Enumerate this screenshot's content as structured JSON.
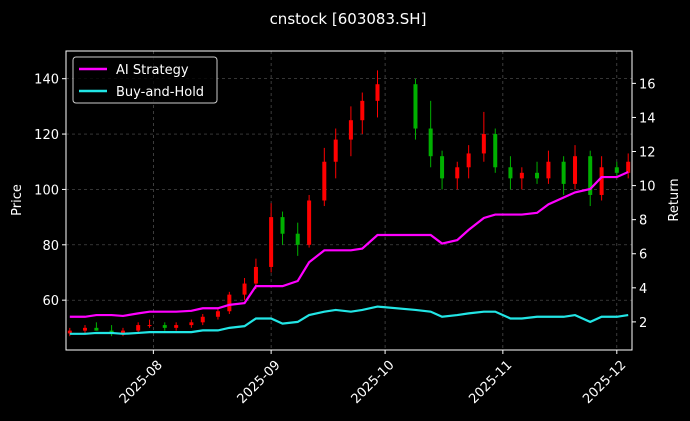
{
  "chart_data": {
    "type": "candlestick",
    "title": "cnstock [603083.SH]",
    "ylabel": "Price",
    "y2label": "Return",
    "x": [
      "2025-07-10",
      "2025-07-14",
      "2025-07-17",
      "2025-07-21",
      "2025-07-24",
      "2025-07-28",
      "2025-07-31",
      "2025-08-04",
      "2025-08-07",
      "2025-08-11",
      "2025-08-14",
      "2025-08-18",
      "2025-08-21",
      "2025-08-25",
      "2025-08-28",
      "2025-09-01",
      "2025-09-04",
      "2025-09-08",
      "2025-09-11",
      "2025-09-15",
      "2025-09-18",
      "2025-09-22",
      "2025-09-25",
      "2025-09-29",
      "2025-10-09",
      "2025-10-13",
      "2025-10-16",
      "2025-10-20",
      "2025-10-23",
      "2025-10-27",
      "2025-10-30",
      "2025-11-03",
      "2025-11-06",
      "2025-11-10",
      "2025-11-13",
      "2025-11-17",
      "2025-11-20",
      "2025-11-24",
      "2025-11-27",
      "2025-12-01",
      "2025-12-04"
    ],
    "candles": {
      "open": [
        48,
        49,
        50,
        49,
        48,
        49,
        51,
        51,
        50,
        51,
        52,
        54,
        56,
        62,
        66,
        72,
        90,
        84,
        80,
        96,
        110,
        118,
        125,
        132,
        138,
        122,
        112,
        104,
        108,
        113,
        120,
        108,
        104,
        106,
        104,
        110,
        102,
        112,
        98,
        108,
        106
      ],
      "high": [
        50,
        51,
        52,
        51,
        50,
        52,
        53,
        52,
        52,
        53,
        55,
        57,
        63,
        68,
        75,
        95,
        92,
        88,
        98,
        115,
        122,
        130,
        135,
        143,
        140,
        132,
        114,
        110,
        116,
        128,
        122,
        112,
        108,
        110,
        114,
        112,
        116,
        114,
        112,
        110,
        113
      ],
      "low": [
        47,
        48,
        49,
        47,
        47,
        48,
        50,
        49,
        49,
        50,
        51,
        53,
        55,
        60,
        64,
        70,
        80,
        76,
        79,
        94,
        104,
        112,
        120,
        126,
        118,
        108,
        100,
        100,
        104,
        110,
        106,
        100,
        100,
        102,
        102,
        98,
        100,
        94,
        96,
        104,
        104
      ],
      "close": [
        49,
        50,
        49,
        48,
        49,
        51,
        51,
        50,
        51,
        52,
        54,
        56,
        62,
        66,
        72,
        90,
        84,
        80,
        96,
        110,
        118,
        125,
        132,
        138,
        122,
        112,
        104,
        108,
        113,
        120,
        108,
        104,
        106,
        104,
        110,
        102,
        112,
        98,
        108,
        106,
        110
      ]
    },
    "up_color": "#ff0000",
    "down_color": "#00b000",
    "series": [
      {
        "name": "AI Strategy",
        "color": "#ff00ff",
        "axis": "y2",
        "values": [
          2.3,
          2.3,
          2.4,
          2.4,
          2.35,
          2.5,
          2.6,
          2.6,
          2.6,
          2.65,
          2.8,
          2.8,
          3.0,
          3.1,
          4.1,
          4.1,
          4.1,
          4.4,
          5.5,
          6.2,
          6.2,
          6.2,
          6.3,
          7.1,
          7.1,
          7.1,
          6.6,
          6.8,
          7.4,
          8.1,
          8.3,
          8.3,
          8.3,
          8.4,
          8.9,
          9.3,
          9.6,
          9.8,
          10.5,
          10.5,
          10.8
        ]
      },
      {
        "name": "Buy-and-Hold",
        "color": "#22e5e5",
        "axis": "y2",
        "values": [
          1.3,
          1.3,
          1.35,
          1.35,
          1.3,
          1.35,
          1.4,
          1.4,
          1.4,
          1.4,
          1.5,
          1.5,
          1.65,
          1.75,
          2.2,
          2.2,
          1.9,
          2.0,
          2.4,
          2.6,
          2.7,
          2.6,
          2.7,
          2.9,
          2.7,
          2.6,
          2.3,
          2.4,
          2.5,
          2.6,
          2.6,
          2.2,
          2.2,
          2.3,
          2.3,
          2.3,
          2.4,
          2.0,
          2.3,
          2.3,
          2.4
        ]
      }
    ],
    "xlim": [
      "2025-07-09",
      "2025-12-05"
    ],
    "xticks": [
      {
        "value": "2025-08-01",
        "label": "2025-08"
      },
      {
        "value": "2025-09-01",
        "label": "2025-09"
      },
      {
        "value": "2025-10-01",
        "label": "2025-10"
      },
      {
        "value": "2025-11-01",
        "label": "2025-11"
      },
      {
        "value": "2025-12-01",
        "label": "2025-12"
      }
    ],
    "ylim": [
      42,
      150
    ],
    "yticks": [
      60,
      80,
      100,
      120,
      140
    ],
    "y2lim": [
      0.35,
      17.9
    ],
    "y2ticks": [
      2,
      4,
      6,
      8,
      10,
      12,
      14,
      16
    ],
    "grid": true,
    "legend": "upper left"
  }
}
